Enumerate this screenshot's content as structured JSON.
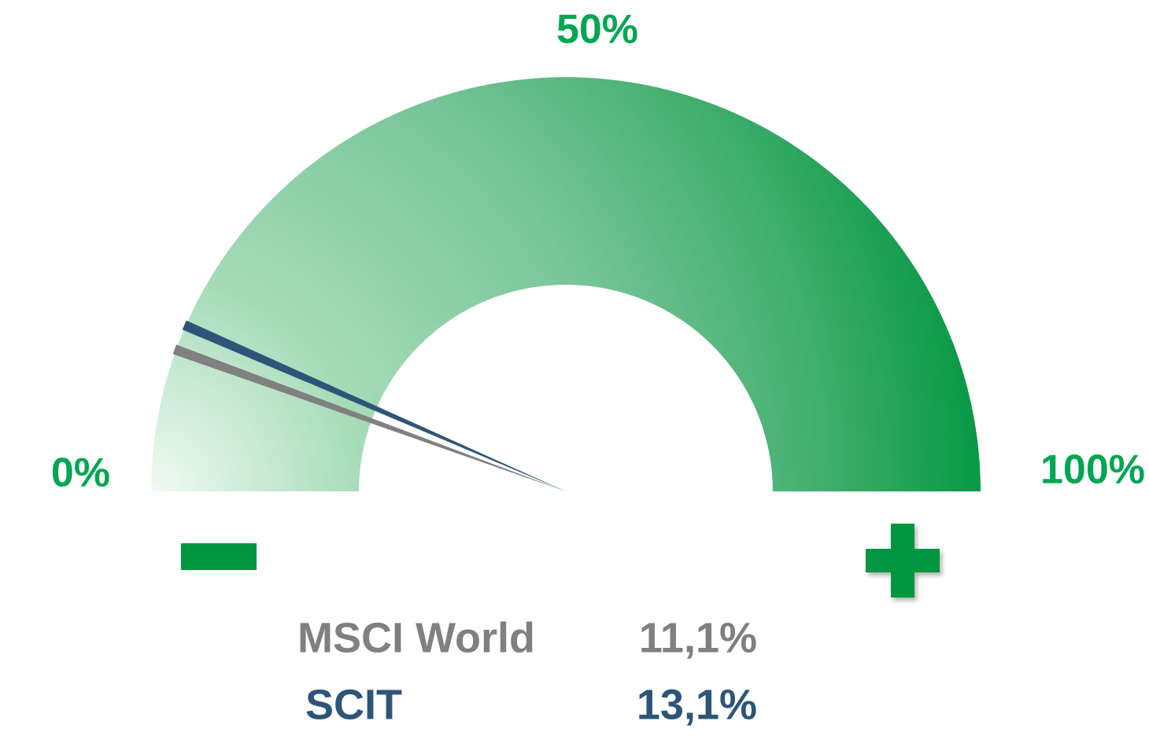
{
  "chart_data": {
    "type": "gauge",
    "ylim": [
      0,
      100
    ],
    "yticks": [
      {
        "value": 0,
        "label": "0%"
      },
      {
        "value": 50,
        "label": "50%"
      },
      {
        "value": 100,
        "label": "100%"
      }
    ],
    "tick_color": "#00a651",
    "series": [
      {
        "name": "MSCI World",
        "color": "#808080",
        "values": [
          11.1
        ],
        "value_labels": [
          "11,1%"
        ]
      },
      {
        "name": "SCIT",
        "color": "#2e5578",
        "values": [
          13.1
        ],
        "value_labels": [
          "13,1%"
        ]
      }
    ]
  }
}
